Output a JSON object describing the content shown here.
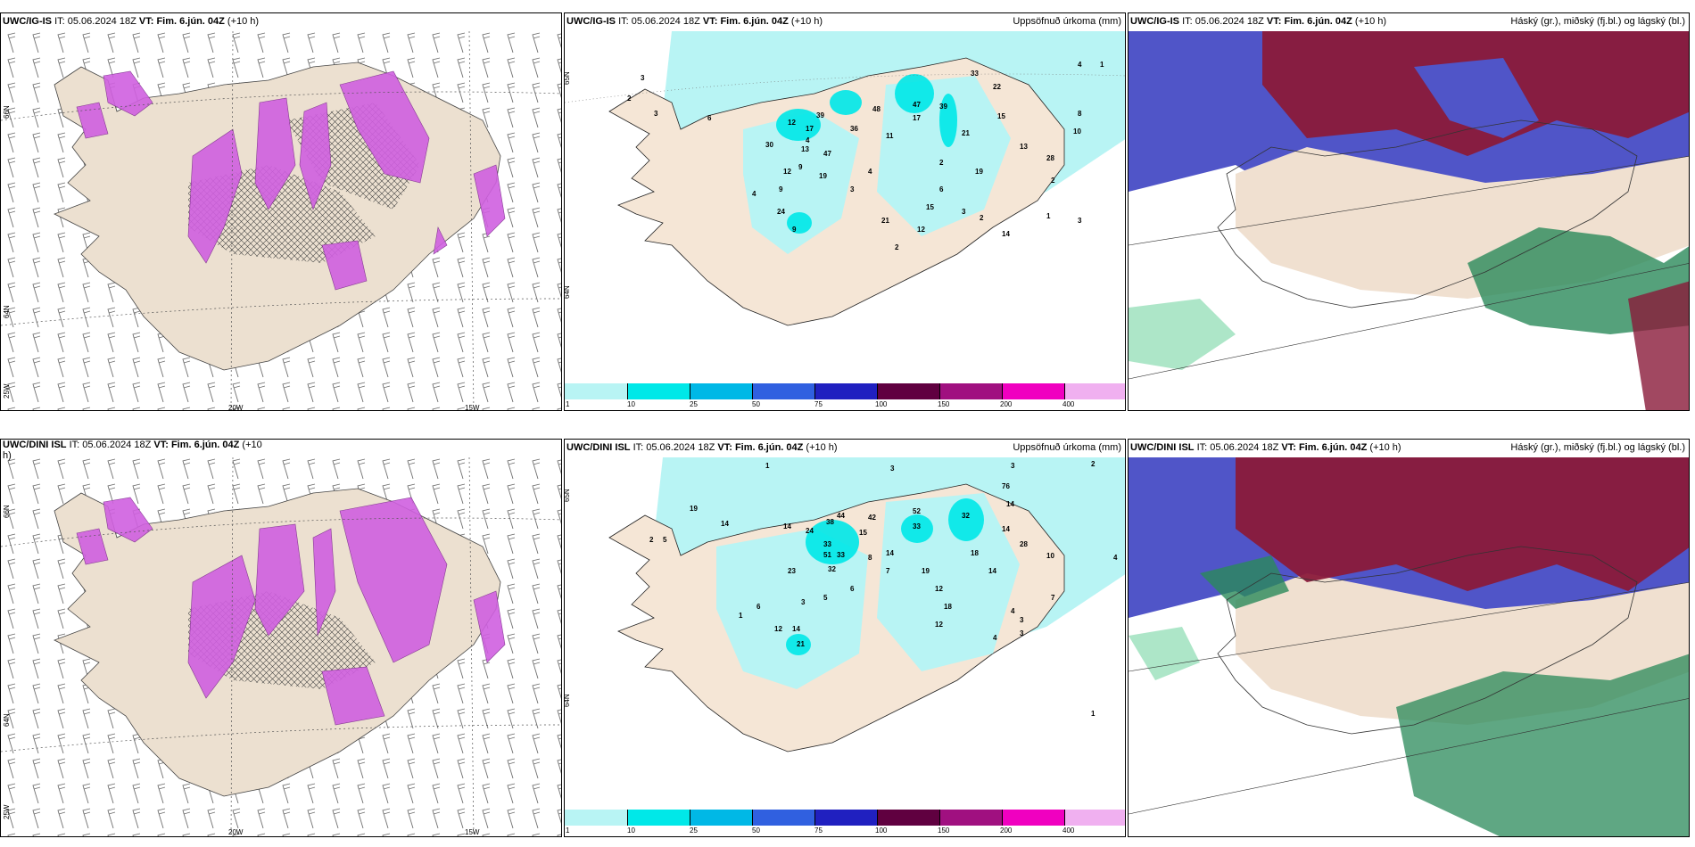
{
  "panels": [
    {
      "model": "UWC/IG-IS",
      "it_label": "IT:",
      "it": "05.06.2024 18Z",
      "vt_label": "VT:",
      "vt": "Fim. 6.jún. 04Z",
      "lead": "(+10 h)",
      "right": ""
    },
    {
      "model": "UWC/IG-IS",
      "it_label": "IT:",
      "it": "05.06.2024 18Z",
      "vt_label": "VT:",
      "vt": "Fim. 6.jún. 04Z",
      "lead": "(+10 h)",
      "right": "Uppsöfnuð úrkoma (mm)"
    },
    {
      "model": "UWC/IG-IS",
      "it_label": "IT:",
      "it": "05.06.2024 18Z",
      "vt_label": "VT:",
      "vt": "Fim. 6.jún. 04Z",
      "lead": "(+10 h)",
      "right": "Háský (gr.), miðský (fj.bl.) og lágský (bl.)"
    },
    {
      "model": "UWC/DINI ISL",
      "it_label": "IT:",
      "it": "05.06.2024 18Z",
      "vt_label": "VT:",
      "vt": "Fim. 6.jún. 04Z",
      "lead": "(+10",
      "lead2": "h)",
      "right": ""
    },
    {
      "model": "UWC/DINI ISL",
      "it_label": "IT:",
      "it": "05.06.2024 18Z",
      "vt_label": "VT:",
      "vt": "Fim. 6.jún. 04Z",
      "lead": "(+10 h)",
      "right": "Uppsöfnuð úrkoma (mm)"
    },
    {
      "model": "UWC/DINI ISL",
      "it_label": "IT:",
      "it": "05.06.2024 18Z",
      "vt_label": "VT:",
      "vt": "Fim. 6.jún. 04Z",
      "lead": "(+10 h)",
      "right": "Háský (gr.), miðský (fj.bl.) og lágský (bl.)"
    }
  ],
  "axes": {
    "lat_66": "66N",
    "lat_64": "64N",
    "lat_65": "65N",
    "lon_25": "25W",
    "lon_20": "20W",
    "lon_15": "15W"
  },
  "colorbar": {
    "ticks": [
      "1",
      "10",
      "25",
      "50",
      "75",
      "100",
      "150",
      "200",
      "400"
    ],
    "colors": [
      "#b8f4f4",
      "#00e8e8",
      "#00b8e6",
      "#3060e0",
      "#2020c0",
      "#600040",
      "#a01080",
      "#f000c0",
      "#f0b0f0"
    ]
  },
  "precip_labels_top": [
    "2",
    "3",
    "6",
    "12",
    "17",
    "39",
    "48",
    "47",
    "39",
    "33",
    "22",
    "15",
    "21",
    "19",
    "13",
    "28",
    "10",
    "4",
    "36",
    "11",
    "17",
    "13",
    "30",
    "47",
    "12",
    "9",
    "19",
    "24",
    "9",
    "4",
    "3",
    "4",
    "2",
    "6",
    "15",
    "12",
    "9",
    "2",
    "21",
    "14",
    "3",
    "2",
    "1",
    "3",
    "2",
    "8",
    "4",
    "1"
  ],
  "precip_labels_bot": [
    "1",
    "3",
    "3",
    "2",
    "19",
    "14",
    "14",
    "24",
    "44",
    "52",
    "32",
    "76",
    "14",
    "38",
    "15",
    "33",
    "33",
    "42",
    "14",
    "28",
    "10",
    "51",
    "33",
    "8",
    "14",
    "18",
    "7",
    "23",
    "32",
    "12",
    "19",
    "18",
    "14",
    "12",
    "7",
    "6",
    "5",
    "3",
    "1",
    "12",
    "14",
    "21",
    "6",
    "4",
    "3",
    "4",
    "3",
    "1",
    "5",
    "2",
    "4"
  ],
  "colors": {
    "land": "#ece0d0",
    "sea": "#ffffff",
    "accent_magenta": "#d060e0",
    "cloud_high": "#8a1a3a",
    "cloud_mid": "#3a40c0",
    "cloud_low": "#2a8a5a"
  }
}
